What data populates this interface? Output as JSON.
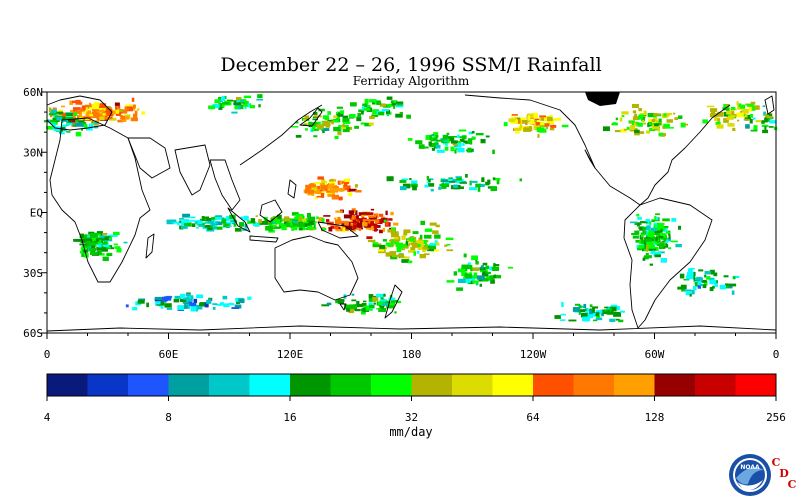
{
  "title": "December 22 – 26, 1996 SSM/I Rainfall",
  "subtitle": "Ferriday Algorithm",
  "map": {
    "lat_labels": [
      "60N",
      "30N",
      "EQ",
      "30S",
      "60S"
    ],
    "lon_labels": [
      "0",
      "60E",
      "120E",
      "180",
      "120W",
      "60W",
      "0"
    ],
    "rain_blobs": [
      {
        "lon": 25,
        "lat": 50,
        "level": 14,
        "spread_lon": 30,
        "spread_lat": 8,
        "n": 140
      },
      {
        "lon": 5,
        "lat": 45,
        "level": 8,
        "spread_lon": 25,
        "spread_lat": 10,
        "n": 80
      },
      {
        "lon": 95,
        "lat": 55,
        "level": 8,
        "spread_lon": 20,
        "spread_lat": 6,
        "n": 40
      },
      {
        "lon": 140,
        "lat": 45,
        "level": 9,
        "spread_lon": 25,
        "spread_lat": 10,
        "n": 70
      },
      {
        "lon": 165,
        "lat": 52,
        "level": 8,
        "spread_lon": 20,
        "spread_lat": 6,
        "n": 40
      },
      {
        "lon": 200,
        "lat": 35,
        "level": 8,
        "spread_lon": 25,
        "spread_lat": 8,
        "n": 70
      },
      {
        "lon": 240,
        "lat": 45,
        "level": 12,
        "spread_lon": 20,
        "spread_lat": 8,
        "n": 70
      },
      {
        "lon": 295,
        "lat": 45,
        "level": 10,
        "spread_lon": 25,
        "spread_lat": 10,
        "n": 80
      },
      {
        "lon": 340,
        "lat": 50,
        "level": 10,
        "spread_lon": 20,
        "spread_lat": 10,
        "n": 60
      },
      {
        "lon": 140,
        "lat": 12,
        "level": 14,
        "spread_lon": 18,
        "spread_lat": 6,
        "n": 90
      },
      {
        "lon": 155,
        "lat": -5,
        "level": 16,
        "spread_lon": 22,
        "spread_lat": 8,
        "n": 130
      },
      {
        "lon": 120,
        "lat": -5,
        "level": 9,
        "spread_lon": 25,
        "spread_lat": 6,
        "n": 110
      },
      {
        "lon": 80,
        "lat": -5,
        "level": 7,
        "spread_lon": 30,
        "spread_lat": 6,
        "n": 80
      },
      {
        "lon": 180,
        "lat": -15,
        "level": 10,
        "spread_lon": 25,
        "spread_lat": 12,
        "n": 110
      },
      {
        "lon": 210,
        "lat": -30,
        "level": 8,
        "spread_lon": 20,
        "spread_lat": 10,
        "n": 60
      },
      {
        "lon": 160,
        "lat": -45,
        "level": 8,
        "spread_lon": 25,
        "spread_lat": 8,
        "n": 60
      },
      {
        "lon": 300,
        "lat": -12,
        "level": 8,
        "spread_lon": 15,
        "spread_lat": 15,
        "n": 140
      },
      {
        "lon": 325,
        "lat": -35,
        "level": 7,
        "spread_lon": 20,
        "spread_lat": 8,
        "n": 50
      },
      {
        "lon": 25,
        "lat": -15,
        "level": 8,
        "spread_lon": 15,
        "spread_lat": 10,
        "n": 90
      },
      {
        "lon": 70,
        "lat": -45,
        "level": 6,
        "spread_lon": 40,
        "spread_lat": 6,
        "n": 70
      },
      {
        "lon": 200,
        "lat": 15,
        "level": 7,
        "spread_lon": 40,
        "spread_lat": 5,
        "n": 60
      },
      {
        "lon": 270,
        "lat": -50,
        "level": 7,
        "spread_lon": 25,
        "spread_lat": 6,
        "n": 50
      }
    ]
  },
  "colorbar": {
    "colors": [
      "#0a1a7a",
      "#0a36c8",
      "#1e55ff",
      "#00a0a0",
      "#00c8c8",
      "#00ffff",
      "#009600",
      "#00c800",
      "#00ff00",
      "#b4b400",
      "#dcdc00",
      "#ffff00",
      "#ff5000",
      "#ff7800",
      "#ffa000",
      "#960000",
      "#c80000",
      "#ff0000"
    ],
    "tick_labels": [
      "4",
      "8",
      "16",
      "32",
      "64",
      "128",
      "256"
    ],
    "units": "mm/day"
  },
  "logo": {
    "text": "NOAA",
    "cdc_letters": [
      "C",
      "D",
      "C"
    ],
    "colors": {
      "outer": "#1a4fa8",
      "inner": "#6aa9e0",
      "letters": "#d40000"
    }
  }
}
